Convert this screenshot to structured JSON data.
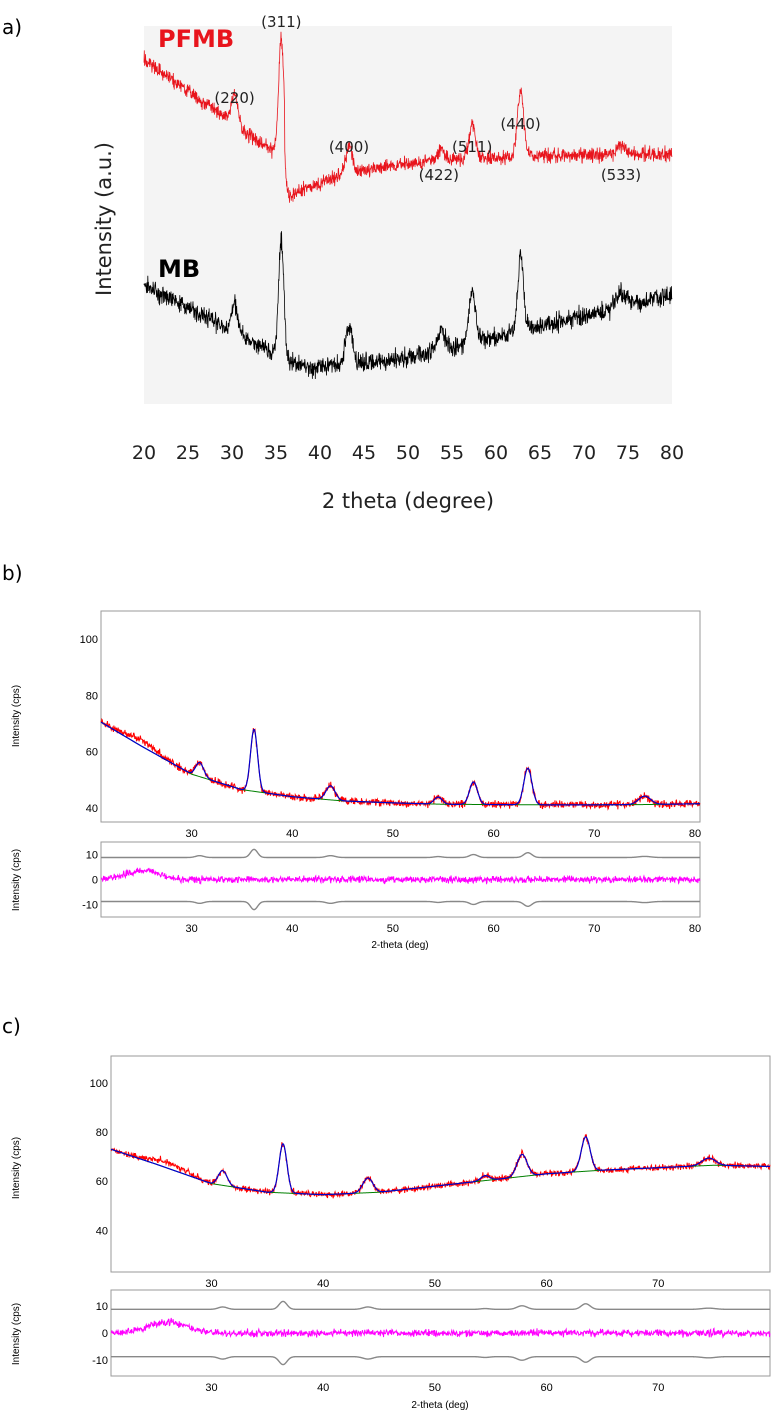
{
  "chart_data": [
    {
      "panel": "a)",
      "type": "line",
      "xlabel": "2 theta (degree)",
      "ylabel": "Intensity (a.u.)",
      "xlim": [
        20,
        80
      ],
      "x_ticks": [
        20,
        25,
        30,
        35,
        40,
        45,
        50,
        55,
        60,
        65,
        70,
        75,
        80
      ],
      "colors": {
        "PFMB": "#e8141c",
        "MB": "#000000"
      },
      "series": [
        {
          "name": "PFMB",
          "label_color": "#e8141c",
          "peaks": [
            30.3,
            35.6,
            43.3,
            53.8,
            57.3,
            62.8,
            74.2
          ],
          "level": "upper"
        },
        {
          "name": "MB",
          "label_color": "#000000",
          "peaks": [
            30.3,
            35.6,
            43.3,
            53.8,
            57.3,
            62.8,
            74.2
          ],
          "level": "lower"
        }
      ],
      "annotations": [
        {
          "text": "(220)",
          "x": 30.3
        },
        {
          "text": "(311)",
          "x": 35.6
        },
        {
          "text": "(400)",
          "x": 43.3
        },
        {
          "text": "(422)",
          "x": 53.5
        },
        {
          "text": "(511)",
          "x": 57.3
        },
        {
          "text": "(440)",
          "x": 62.8
        },
        {
          "text": "(533)",
          "x": 74.2
        }
      ]
    },
    {
      "panel": "b)",
      "type": "line",
      "xlabel": "2-theta (deg)",
      "ylabel": "Intensity (cps)",
      "residual_ylabel": "Intensity (cps)",
      "xlim": [
        21,
        80.5
      ],
      "ylim": [
        35,
        110
      ],
      "x_ticks": [
        30,
        40,
        50,
        60,
        70,
        80
      ],
      "y_ticks": [
        40,
        60,
        80,
        100
      ],
      "residual_ylim": [
        -15,
        15
      ],
      "residual_ticks": [
        10,
        0,
        -10
      ],
      "colors": {
        "observed": "#ff0000",
        "fit": "#0000cc",
        "background": "#008000",
        "residual": "#ff00ff",
        "envelope": "#888888"
      },
      "background": [
        [
          21,
          70.5
        ],
        [
          25,
          62
        ],
        [
          30,
          52
        ],
        [
          35,
          46.5
        ],
        [
          40,
          44
        ],
        [
          45,
          42.5
        ],
        [
          50,
          41.8
        ],
        [
          55,
          41.3
        ],
        [
          60,
          41.2
        ],
        [
          65,
          41.1
        ],
        [
          70,
          41.1
        ],
        [
          75,
          41.2
        ],
        [
          80.5,
          41.5
        ]
      ],
      "peaks": [
        [
          30.8,
          5,
          0.4
        ],
        [
          36.2,
          22,
          0.35
        ],
        [
          43.8,
          5,
          0.45
        ],
        [
          54.5,
          2.5,
          0.4
        ],
        [
          58,
          8,
          0.4
        ],
        [
          63.4,
          13,
          0.4
        ],
        [
          75,
          3,
          0.6
        ]
      ],
      "residual_bump": [
        25,
        3.5
      ]
    },
    {
      "panel": "c)",
      "type": "line",
      "xlabel": "2-theta (deg)",
      "ylabel": "Intensity (cps)",
      "residual_ylabel": "Intensity (cps)",
      "xlim": [
        21,
        80
      ],
      "ylim": [
        23,
        111
      ],
      "x_ticks": [
        30,
        40,
        50,
        60,
        70
      ],
      "y_ticks": [
        40,
        60,
        80,
        100
      ],
      "residual_ylim": [
        -16,
        16
      ],
      "residual_ticks": [
        10,
        0,
        -10
      ],
      "colors": {
        "observed": "#ff0000",
        "fit": "#0000cc",
        "background": "#008000",
        "residual": "#ff00ff",
        "envelope": "#888888"
      },
      "background": [
        [
          21,
          73
        ],
        [
          25,
          67
        ],
        [
          30,
          59
        ],
        [
          35,
          55.5
        ],
        [
          40,
          54.5
        ],
        [
          45,
          55.5
        ],
        [
          50,
          58
        ],
        [
          55,
          60.5
        ],
        [
          60,
          63
        ],
        [
          65,
          64.5
        ],
        [
          70,
          65.5
        ],
        [
          75,
          66.5
        ],
        [
          80,
          66
        ]
      ],
      "peaks": [
        [
          31,
          6,
          0.4
        ],
        [
          36.4,
          20,
          0.35
        ],
        [
          44,
          6,
          0.45
        ],
        [
          54.5,
          2,
          0.4
        ],
        [
          57.8,
          9,
          0.45
        ],
        [
          63.5,
          14,
          0.4
        ],
        [
          74.5,
          3,
          0.6
        ]
      ],
      "residual_bump": [
        26,
        4
      ]
    }
  ]
}
